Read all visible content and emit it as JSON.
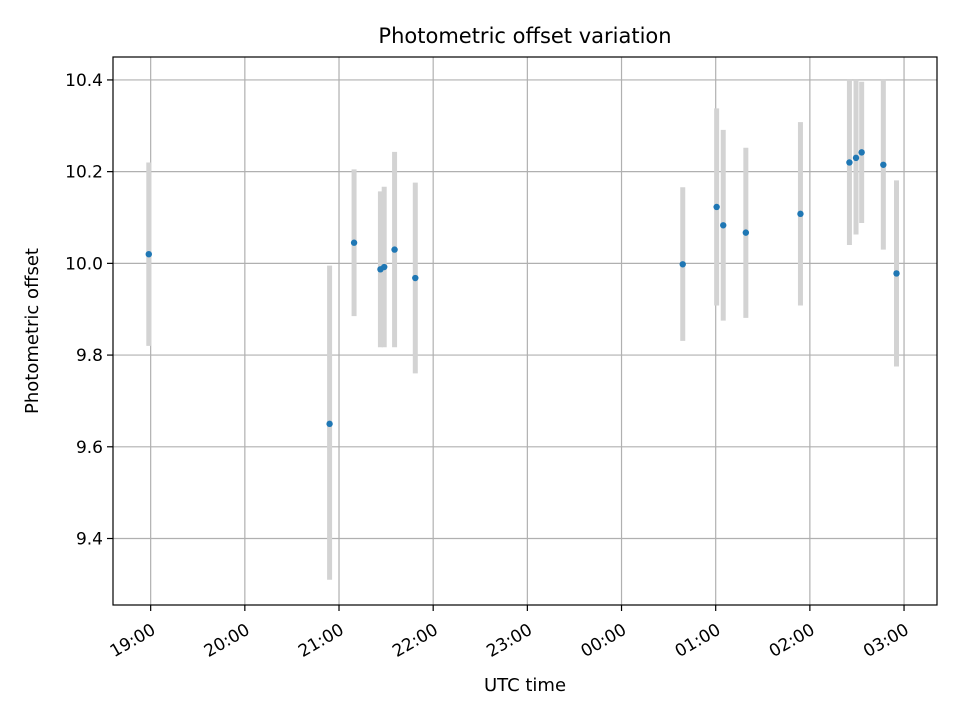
{
  "chart_data": {
    "type": "scatter",
    "title": "Photometric offset variation",
    "xlabel": "UTC time",
    "ylabel": "Photometric offset",
    "x_unit": "hours after 19:00 UTC",
    "xlim": [
      -0.4,
      8.35
    ],
    "ylim": [
      9.255,
      10.45
    ],
    "x_ticks": [
      {
        "value": 0,
        "label": "19:00"
      },
      {
        "value": 1,
        "label": "20:00"
      },
      {
        "value": 2,
        "label": "21:00"
      },
      {
        "value": 3,
        "label": "22:00"
      },
      {
        "value": 4,
        "label": "23:00"
      },
      {
        "value": 5,
        "label": "00:00"
      },
      {
        "value": 6,
        "label": "01:00"
      },
      {
        "value": 7,
        "label": "02:00"
      },
      {
        "value": 8,
        "label": "03:00"
      }
    ],
    "y_ticks": [
      {
        "value": 9.4,
        "label": "9.4"
      },
      {
        "value": 9.6,
        "label": "9.6"
      },
      {
        "value": 9.8,
        "label": "9.8"
      },
      {
        "value": 10.0,
        "label": "10.0"
      },
      {
        "value": 10.2,
        "label": "10.2"
      },
      {
        "value": 10.4,
        "label": "10.4"
      }
    ],
    "grid": true,
    "colors": {
      "point": "#1f77b4",
      "errorbar": "#d3d3d3",
      "grid": "#b0b0b0"
    },
    "points": [
      {
        "x": -0.02,
        "y": 10.02,
        "lo": 9.82,
        "hi": 10.22
      },
      {
        "x": 1.9,
        "y": 9.65,
        "lo": 9.31,
        "hi": 9.995
      },
      {
        "x": 2.16,
        "y": 10.045,
        "lo": 9.885,
        "hi": 10.205
      },
      {
        "x": 2.44,
        "y": 9.987,
        "lo": 9.817,
        "hi": 10.157
      },
      {
        "x": 2.48,
        "y": 9.992,
        "lo": 9.817,
        "hi": 10.167
      },
      {
        "x": 2.59,
        "y": 10.03,
        "lo": 9.817,
        "hi": 10.243
      },
      {
        "x": 2.81,
        "y": 9.968,
        "lo": 9.76,
        "hi": 10.176
      },
      {
        "x": 5.65,
        "y": 9.998,
        "lo": 9.831,
        "hi": 10.166
      },
      {
        "x": 6.01,
        "y": 10.123,
        "lo": 9.908,
        "hi": 10.338
      },
      {
        "x": 6.08,
        "y": 10.083,
        "lo": 9.875,
        "hi": 10.291
      },
      {
        "x": 6.32,
        "y": 10.067,
        "lo": 9.881,
        "hi": 10.252
      },
      {
        "x": 6.9,
        "y": 10.108,
        "lo": 9.908,
        "hi": 10.308
      },
      {
        "x": 7.42,
        "y": 10.22,
        "lo": 10.04,
        "hi": 10.4
      },
      {
        "x": 7.49,
        "y": 10.23,
        "lo": 10.063,
        "hi": 10.4
      },
      {
        "x": 7.55,
        "y": 10.242,
        "lo": 10.088,
        "hi": 10.396
      },
      {
        "x": 7.78,
        "y": 10.215,
        "lo": 10.03,
        "hi": 10.4
      },
      {
        "x": 7.92,
        "y": 9.978,
        "lo": 9.775,
        "hi": 10.181
      }
    ]
  }
}
